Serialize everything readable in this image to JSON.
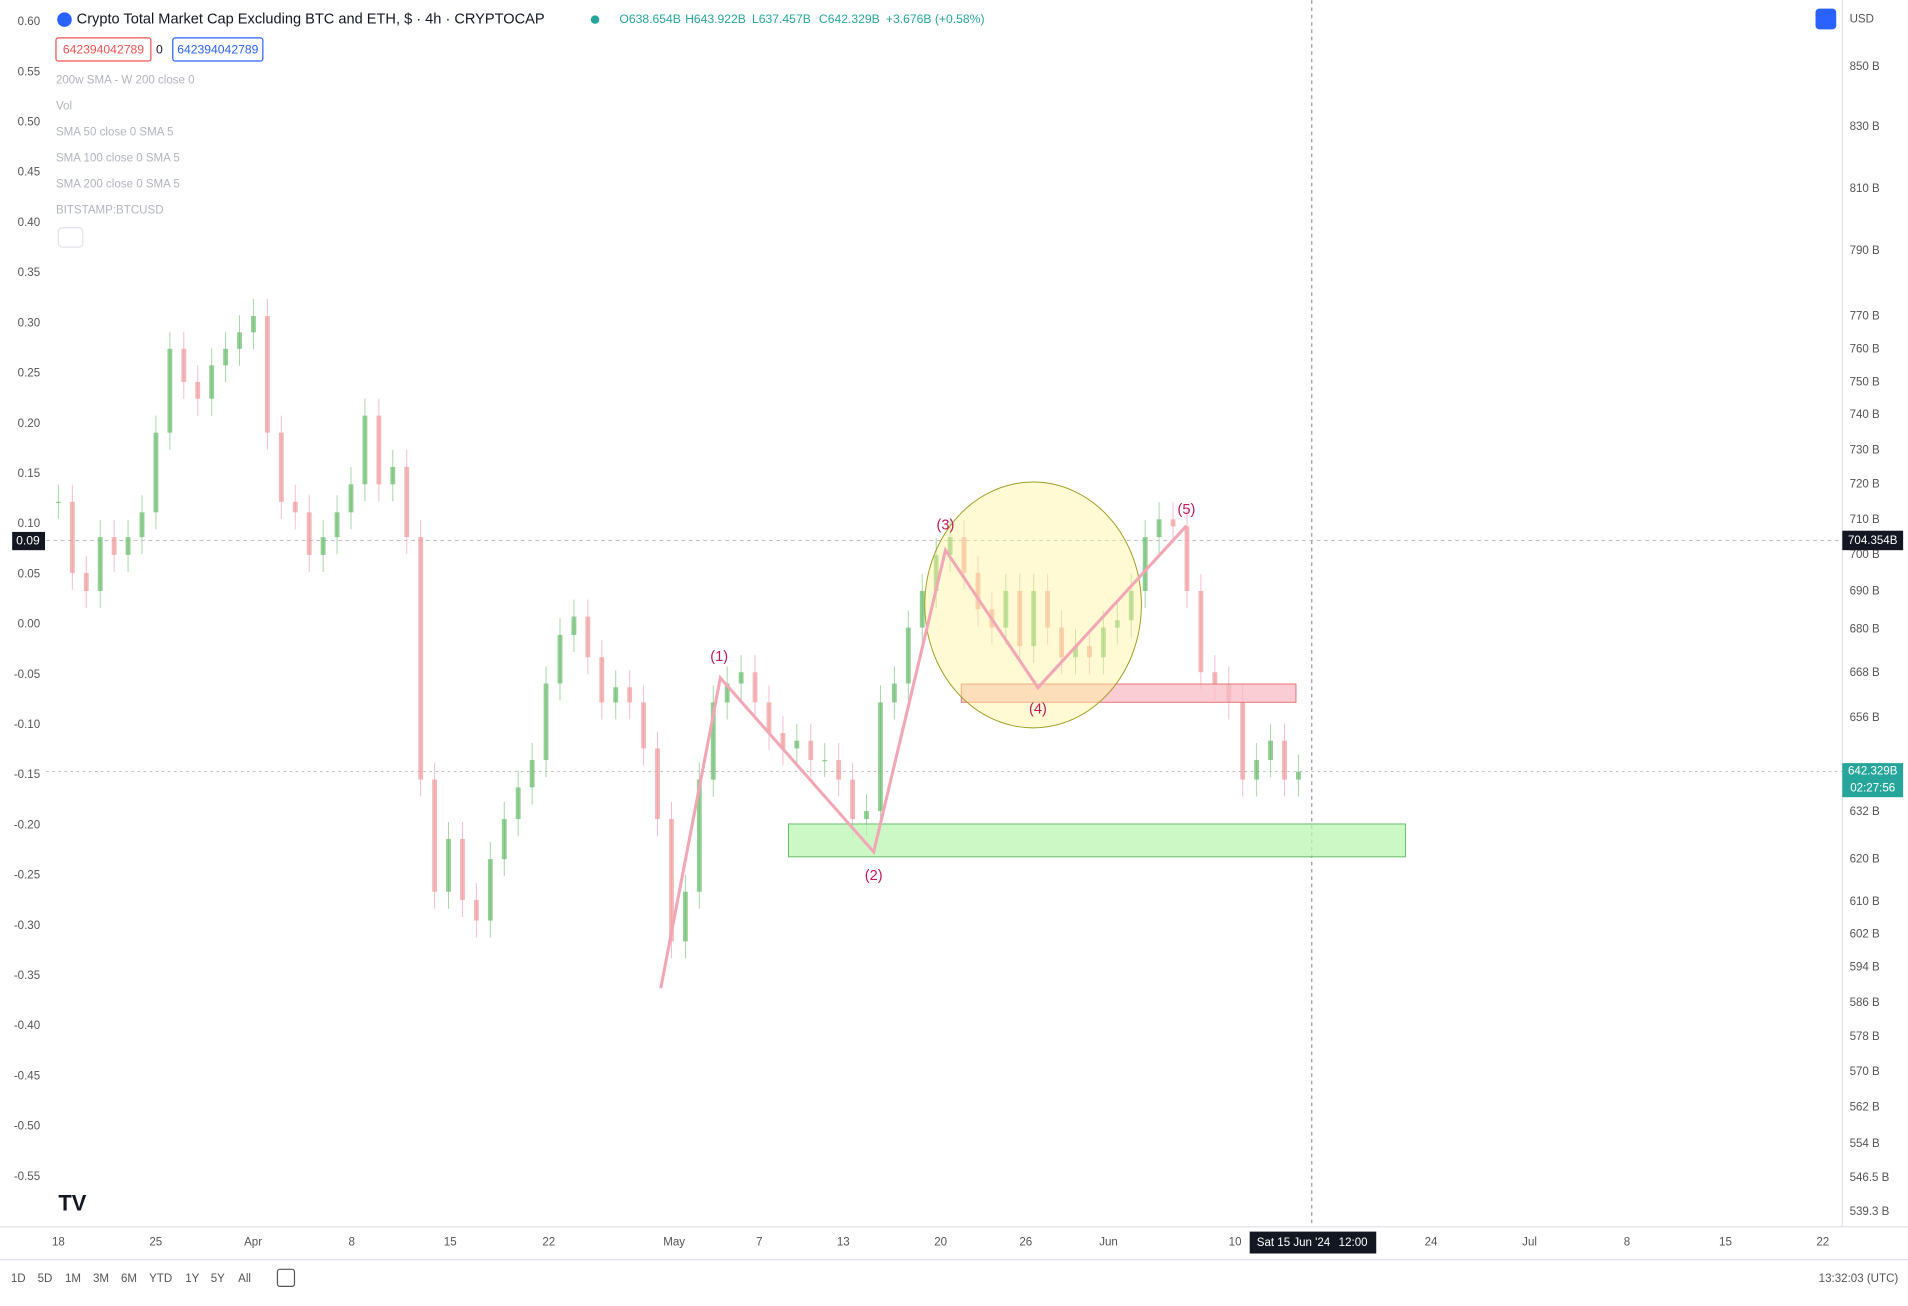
{
  "header": {
    "symbol_title": "Crypto Total Market Cap Excluding BTC and ETH, $ · 4h · CRYPTOCAP",
    "ohlc": [
      "O638.654B",
      "H643.922B",
      "L637.457B",
      "C642.329B",
      "+3.676B (+0.58%)"
    ],
    "inputs": [
      "642394042789",
      "0",
      "642394042789"
    ]
  },
  "indicators": [
    "200w SMA - W 200 close 0",
    "Vol",
    "SMA 50 close 0 SMA 5",
    "SMA 100 close 0 SMA 5",
    "SMA 200 close 0 SMA 5",
    "BITSTAMP:BTCUSD"
  ],
  "currency": "USD",
  "left_axis": {
    "labels": [
      "0.60",
      "0.55",
      "0.50",
      "0.45",
      "0.40",
      "0.35",
      "0.30",
      "0.25",
      "0.20",
      "0.15",
      "0.10",
      "0.05",
      "0.00",
      "-0.05",
      "-0.10",
      "-0.15",
      "-0.20",
      "-0.25",
      "-0.30",
      "-0.35",
      "-0.40",
      "-0.45",
      "-0.50",
      "-0.55"
    ],
    "crosshair_label": "0.09"
  },
  "right_axis": {
    "labels": [
      "850 B",
      "830 B",
      "810 B",
      "790 B",
      "770 B",
      "760 B",
      "750 B",
      "740 B",
      "730 B",
      "720 B",
      "710 B",
      "700 B",
      "690 B",
      "680 B",
      "668 B",
      "656 B",
      "632 B",
      "620 B",
      "610 B",
      "602 B",
      "594 B",
      "586 B",
      "578 B",
      "570 B",
      "562 B",
      "554 B",
      "546.5 B",
      "539.3 B"
    ],
    "crosshair_label": "704.354B",
    "last_price": "642.329B",
    "countdown": "02:27:56"
  },
  "time_axis": {
    "labels": [
      "18",
      "25",
      "Apr",
      "8",
      "15",
      "22",
      "May",
      "7",
      "13",
      "20",
      "26",
      "Jun",
      "10",
      "24",
      "Jul",
      "8",
      "15",
      "22"
    ],
    "crosshair_date": "Sat 15 Jun '24",
    "crosshair_time": "12:00"
  },
  "waves": [
    "(1)",
    "(2)",
    "(3)",
    "(4)",
    "(5)"
  ],
  "candles": [
    715,
    695,
    690,
    705,
    700,
    705,
    712,
    735,
    760,
    750,
    745,
    755,
    760,
    765,
    770,
    735,
    715,
    712,
    700,
    705,
    712,
    720,
    740,
    720,
    725,
    705,
    640,
    612,
    625,
    610,
    605,
    620,
    630,
    638,
    645,
    665,
    678,
    683,
    672,
    660,
    664,
    660,
    648,
    630,
    600,
    612,
    640,
    660,
    665,
    668,
    660,
    652,
    648,
    650,
    645,
    645,
    640,
    630,
    632,
    660,
    665,
    680,
    690,
    700,
    705,
    695,
    685,
    680,
    690,
    675,
    690,
    680,
    672,
    675,
    672,
    680,
    682,
    690,
    705,
    710,
    708,
    690,
    668,
    665,
    660,
    640,
    645,
    650,
    640,
    642
  ],
  "toolbar": {
    "ranges": [
      "1D",
      "5D",
      "1M",
      "3M",
      "6M",
      "YTD",
      "1Y",
      "5Y",
      "All"
    ],
    "clock": "13:32:03 (UTC)"
  }
}
